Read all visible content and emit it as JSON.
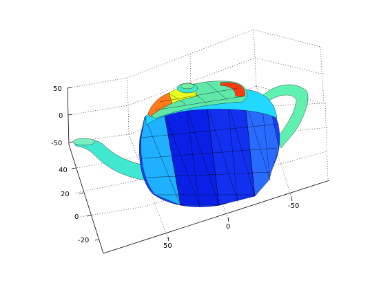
{
  "chart_data": {
    "type": "surface",
    "title": "",
    "xlabel": "",
    "ylabel": "",
    "zlabel": "",
    "x_ticks": [
      "50",
      "0",
      "-50"
    ],
    "y_ticks": [
      "40",
      "20",
      "0",
      "-20"
    ],
    "z_ticks": [
      "50",
      "0",
      "-50"
    ],
    "grid": true,
    "colormap": [
      "#00008f",
      "#0000ff",
      "#0080ff",
      "#00ffff",
      "#80ff80",
      "#ffff00",
      "#ff8000",
      "#ff0000",
      "#800000"
    ],
    "mesh_edge_color": "#000000",
    "surface": "teapot"
  }
}
